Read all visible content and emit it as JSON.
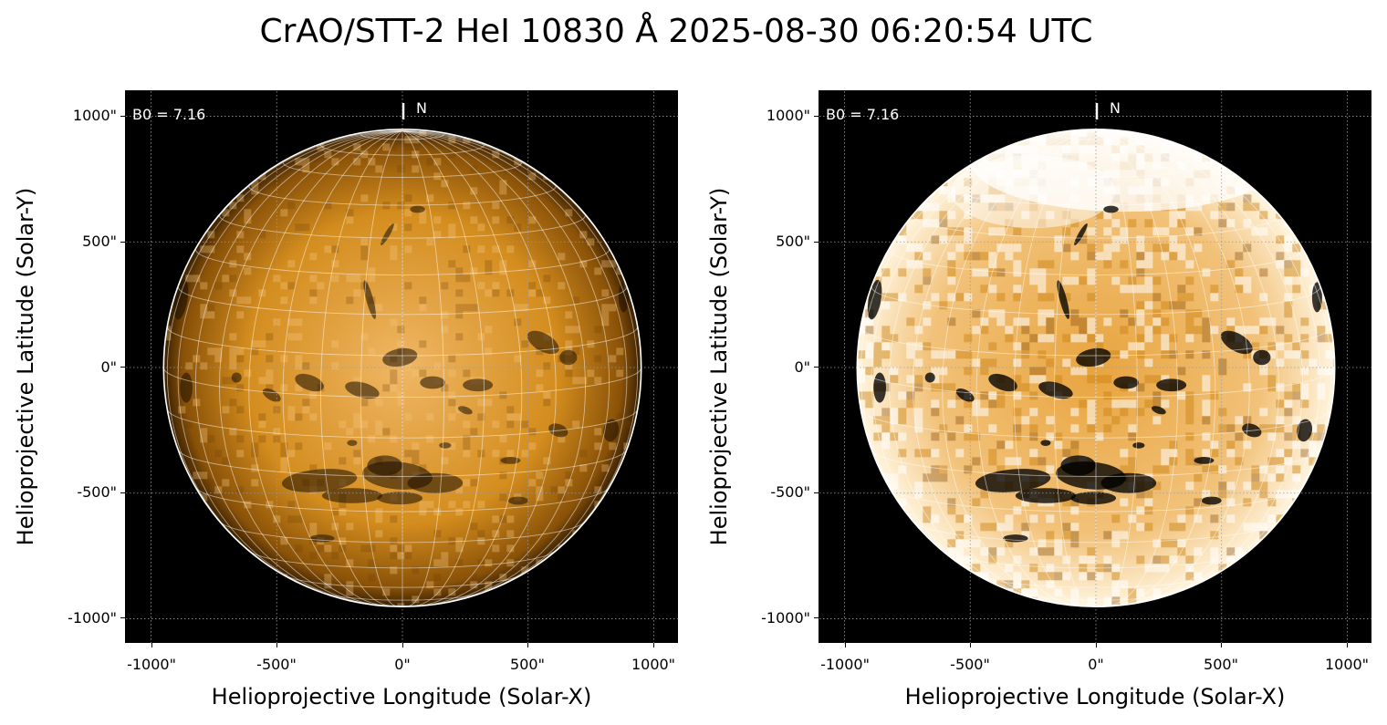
{
  "title": "CrAO/STT-2 HeI 10830 Å 2025-08-30 06:20:54 UTC",
  "colors": {
    "sun_mid": "#c9810f",
    "sun_light": "#efb25a",
    "disk_edge": "#ffffff",
    "background": "#000000"
  },
  "panels": [
    {
      "id": "left",
      "xlabel": "Helioprojective Longitude (Solar-X)",
      "ylabel": "Helioprojective Latitude (Solar-Y)",
      "b0_label": "B0 = 7.16",
      "north_label": "N",
      "xticks": [
        "-1000\"",
        "-500\"",
        "0\"",
        "500\"",
        "1000\""
      ],
      "yticks": [
        "1000\"",
        "500\"",
        "0\"",
        "-500\"",
        "-1000\""
      ],
      "contrast": "normal"
    },
    {
      "id": "right",
      "xlabel": "Helioprojective Longitude (Solar-X)",
      "ylabel": "Helioprojective Latitude (Solar-Y)",
      "b0_label": "B0 = 7.16",
      "north_label": "N",
      "xticks": [
        "-1000\"",
        "-500\"",
        "0\"",
        "500\"",
        "1000\""
      ],
      "yticks": [
        "1000\"",
        "500\"",
        "0\"",
        "-500\"",
        "-1000\""
      ],
      "contrast": "enhanced"
    }
  ]
}
